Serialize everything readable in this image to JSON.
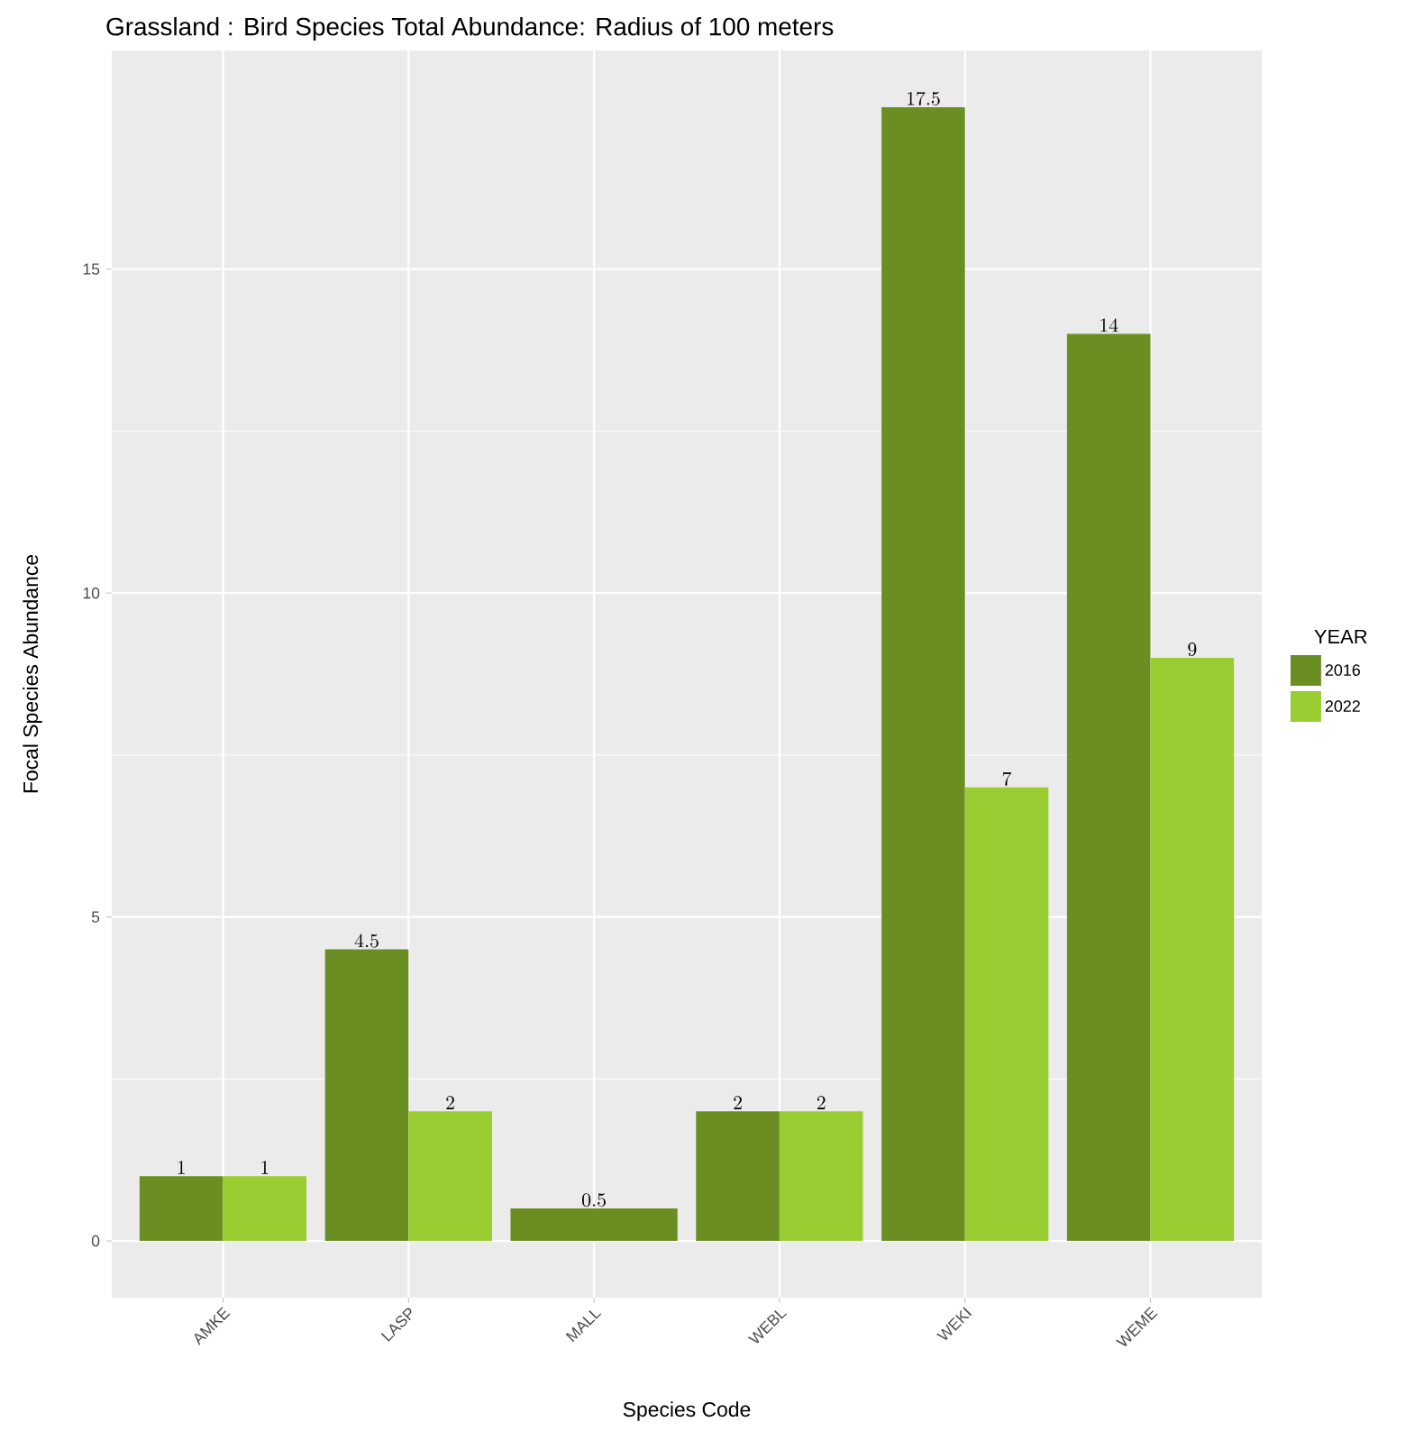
{
  "chart_data": {
    "type": "bar",
    "title": "Grassland : Bird Species Total Abundance: Radius of  100 meters",
    "xlabel": "Species Code",
    "ylabel": "Focal Species Abundance",
    "legend_title": "YEAR",
    "categories": [
      "AMKE",
      "LASP",
      "MALL",
      "WEBL",
      "WEKI",
      "WEME"
    ],
    "series": [
      {
        "name": "2016",
        "color": "#6b8e23",
        "values": [
          1,
          4.5,
          0.5,
          2,
          17.5,
          14
        ]
      },
      {
        "name": "2022",
        "color": "#9acd32",
        "values": [
          1,
          2,
          null,
          2,
          7,
          9
        ]
      }
    ],
    "ylim": [
      -0.875,
      18.375
    ],
    "yticks": [
      0,
      5,
      10,
      15
    ],
    "grid": true,
    "legend": "right",
    "data_labels": true
  }
}
